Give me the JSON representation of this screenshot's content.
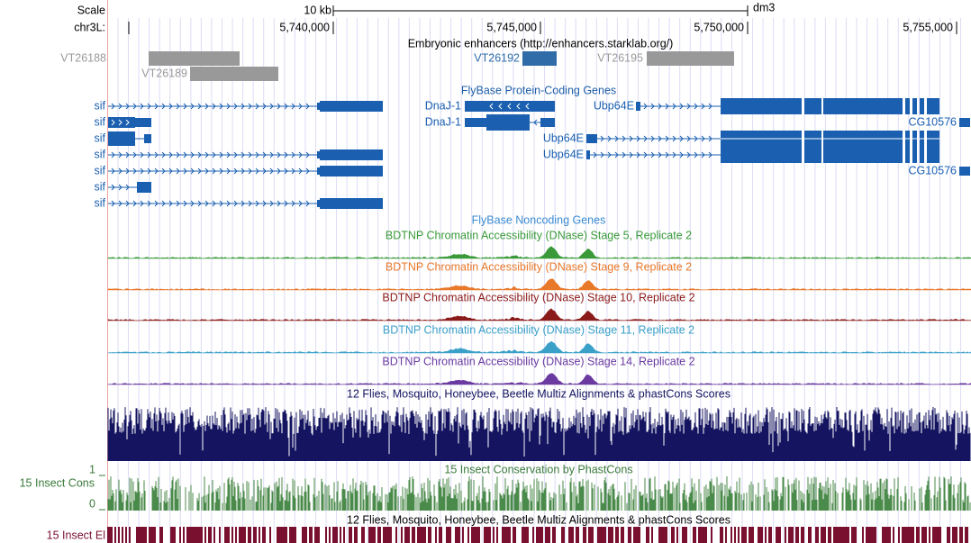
{
  "header": {
    "scale": "Scale",
    "scale_length": "10 kb",
    "assembly": "dm3",
    "chrom": "chr3L:",
    "positions": [
      "5,740,000",
      "5,745,000",
      "5,750,000",
      "5,755,000"
    ]
  },
  "tracks": {
    "enhancers": {
      "title": "Embryonic enhancers (http://enhancers.starklab.org/)",
      "items": [
        "VT26188",
        "VT26189",
        "VT26192",
        "VT26195"
      ]
    },
    "coding_genes": {
      "title": "FlyBase Protein-Coding Genes",
      "labels": [
        "sif",
        "sif",
        "sif",
        "sif",
        "sif",
        "sif",
        "sif",
        "DnaJ-1",
        "DnaJ-1",
        "Ubp64E",
        "CG10576",
        "Ubp64E",
        "Ubp64E",
        "CG10576"
      ]
    },
    "noncoding_genes": {
      "title": "FlyBase Noncoding Genes"
    },
    "dnase": {
      "titles": [
        "BDTNP Chromatin Accessibility (DNase) Stage 5, Replicate 2",
        "BDTNP Chromatin Accessibility (DNase) Stage 9, Replicate 2",
        "BDTNP Chromatin Accessibility (DNase) Stage 10, Replicate 2",
        "BDTNP Chromatin Accessibility (DNase) Stage 11, Replicate 2",
        "BDTNP Chromatin Accessibility (DNase) Stage 14, Replicate 2"
      ]
    },
    "multiz": {
      "title": "12 Flies, Mosquito, Honeybee, Beetle Multiz Alignments & phastCons Scores"
    },
    "phastcons": {
      "title": "15 Insect Conservation by PhastCons",
      "short_label": "15 Insect Cons",
      "max": 1,
      "min": 0
    },
    "multiz_elements": {
      "title": "12 Flies, Mosquito, Honeybee, Beetle Multiz Alignments & phastCons Scores"
    },
    "elements": {
      "short_label": "15 Insect El"
    }
  }
}
